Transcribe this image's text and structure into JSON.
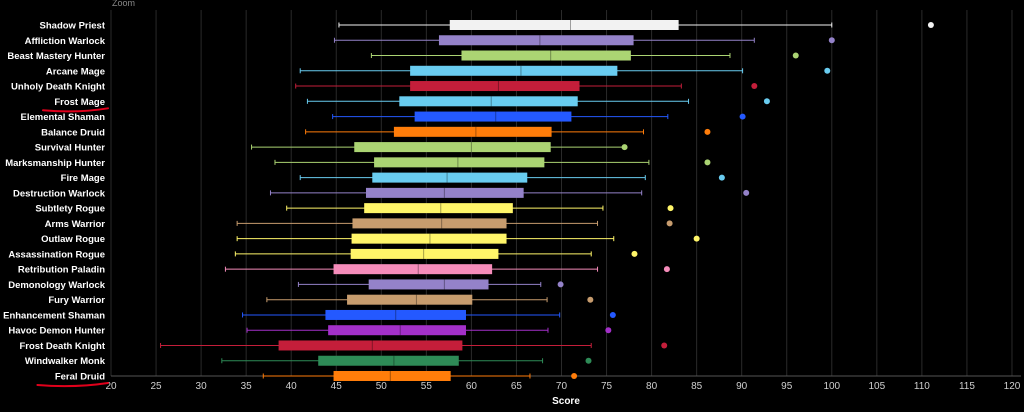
{
  "zoom_label": "Zoom",
  "chart_data": {
    "type": "boxplot",
    "title": "",
    "xlabel": "Score",
    "ylabel": "",
    "xlim": [
      20,
      121
    ],
    "xticks": [
      20,
      25,
      30,
      35,
      40,
      45,
      50,
      55,
      60,
      65,
      70,
      75,
      80,
      85,
      90,
      95,
      100,
      105,
      110,
      115,
      120
    ],
    "grid": true,
    "highlighted": [
      "Frost Mage",
      "Feral Druid"
    ],
    "series": [
      {
        "name": "Shadow Priest",
        "color": "#f2f2f2",
        "min": 45.3,
        "q1": 57.6,
        "median": 71.0,
        "q3": 83.0,
        "max": 100.0,
        "outliers": [
          111.0
        ]
      },
      {
        "name": "Affliction Warlock",
        "color": "#9482c9",
        "min": 44.8,
        "q1": 56.4,
        "median": 67.6,
        "q3": 78.0,
        "max": 91.4,
        "outliers": [
          100.0
        ]
      },
      {
        "name": "Beast Mastery Hunter",
        "color": "#abd473",
        "min": 48.9,
        "q1": 58.9,
        "median": 68.8,
        "q3": 77.7,
        "max": 88.7,
        "outliers": [
          96.0
        ]
      },
      {
        "name": "Arcane Mage",
        "color": "#69ccf0",
        "min": 41.0,
        "q1": 53.2,
        "median": 65.5,
        "q3": 76.2,
        "max": 90.1,
        "outliers": [
          99.5
        ]
      },
      {
        "name": "Unholy Death Knight",
        "color": "#c41e3a",
        "min": 40.5,
        "q1": 53.2,
        "median": 63.0,
        "q3": 72.0,
        "max": 83.3,
        "outliers": [
          91.4
        ]
      },
      {
        "name": "Frost Mage",
        "color": "#69ccf0",
        "min": 41.8,
        "q1": 52.0,
        "median": 62.2,
        "q3": 71.8,
        "max": 84.1,
        "outliers": [
          92.8
        ]
      },
      {
        "name": "Elemental Shaman",
        "color": "#2459ff",
        "min": 44.6,
        "q1": 53.7,
        "median": 62.7,
        "q3": 71.1,
        "max": 81.8,
        "outliers": [
          90.1
        ]
      },
      {
        "name": "Balance Druid",
        "color": "#ff7d0a",
        "min": 41.6,
        "q1": 51.4,
        "median": 60.5,
        "q3": 68.9,
        "max": 79.1,
        "outliers": [
          86.2
        ]
      },
      {
        "name": "Survival Hunter",
        "color": "#abd473",
        "min": 35.6,
        "q1": 47.0,
        "median": 60.0,
        "q3": 68.8,
        "max": 76.9,
        "outliers": [
          77.0
        ]
      },
      {
        "name": "Marksmanship Hunter",
        "color": "#abd473",
        "min": 38.2,
        "q1": 49.2,
        "median": 58.5,
        "q3": 68.1,
        "max": 79.7,
        "outliers": [
          86.2
        ]
      },
      {
        "name": "Fire Mage",
        "color": "#69ccf0",
        "min": 41.0,
        "q1": 49.0,
        "median": 57.3,
        "q3": 66.2,
        "max": 79.3,
        "outliers": [
          87.8
        ]
      },
      {
        "name": "Destruction Warlock",
        "color": "#9482c9",
        "min": 37.7,
        "q1": 48.3,
        "median": 57.0,
        "q3": 65.8,
        "max": 78.9,
        "outliers": [
          90.5
        ]
      },
      {
        "name": "Subtlety Rogue",
        "color": "#fff569",
        "min": 39.5,
        "q1": 48.1,
        "median": 56.6,
        "q3": 64.6,
        "max": 74.6,
        "outliers": [
          82.1
        ]
      },
      {
        "name": "Arms Warrior",
        "color": "#c79c6e",
        "min": 34.0,
        "q1": 46.8,
        "median": 56.7,
        "q3": 63.9,
        "max": 74.0,
        "outliers": [
          82.0
        ]
      },
      {
        "name": "Outlaw Rogue",
        "color": "#fff569",
        "min": 34.0,
        "q1": 46.7,
        "median": 55.4,
        "q3": 63.9,
        "max": 75.8,
        "outliers": [
          85.0
        ]
      },
      {
        "name": "Assassination Rogue",
        "color": "#fff569",
        "min": 33.8,
        "q1": 46.6,
        "median": 54.7,
        "q3": 63.0,
        "max": 73.3,
        "outliers": [
          78.1
        ]
      },
      {
        "name": "Retribution Paladin",
        "color": "#f58cba",
        "min": 32.7,
        "q1": 44.7,
        "median": 54.1,
        "q3": 62.3,
        "max": 74.0,
        "outliers": [
          81.7
        ]
      },
      {
        "name": "Demonology Warlock",
        "color": "#9482c9",
        "min": 40.8,
        "q1": 48.6,
        "median": 57.0,
        "q3": 61.9,
        "max": 67.7,
        "outliers": [
          69.9
        ]
      },
      {
        "name": "Fury Warrior",
        "color": "#c79c6e",
        "min": 37.3,
        "q1": 46.2,
        "median": 53.9,
        "q3": 60.1,
        "max": 68.4,
        "outliers": [
          73.2
        ]
      },
      {
        "name": "Enhancement Shaman",
        "color": "#2459ff",
        "min": 34.6,
        "q1": 43.8,
        "median": 51.6,
        "q3": 59.4,
        "max": 69.8,
        "outliers": [
          75.7
        ]
      },
      {
        "name": "Havoc Demon Hunter",
        "color": "#a330c9",
        "min": 35.1,
        "q1": 44.1,
        "median": 52.1,
        "q3": 59.4,
        "max": 68.5,
        "outliers": [
          75.2
        ]
      },
      {
        "name": "Frost Death Knight",
        "color": "#c41e3a",
        "min": 25.5,
        "q1": 38.6,
        "median": 49.0,
        "q3": 59.0,
        "max": 73.3,
        "outliers": [
          81.4
        ]
      },
      {
        "name": "Windwalker Monk",
        "color": "#2e8b57",
        "min": 32.3,
        "q1": 43.0,
        "median": 51.4,
        "q3": 58.6,
        "max": 67.9,
        "outliers": [
          73.0
        ]
      },
      {
        "name": "Feral Druid",
        "color": "#ff7d0a",
        "min": 36.9,
        "q1": 44.7,
        "median": 51.0,
        "q3": 57.7,
        "max": 66.5,
        "outliers": [
          71.4
        ]
      }
    ]
  }
}
